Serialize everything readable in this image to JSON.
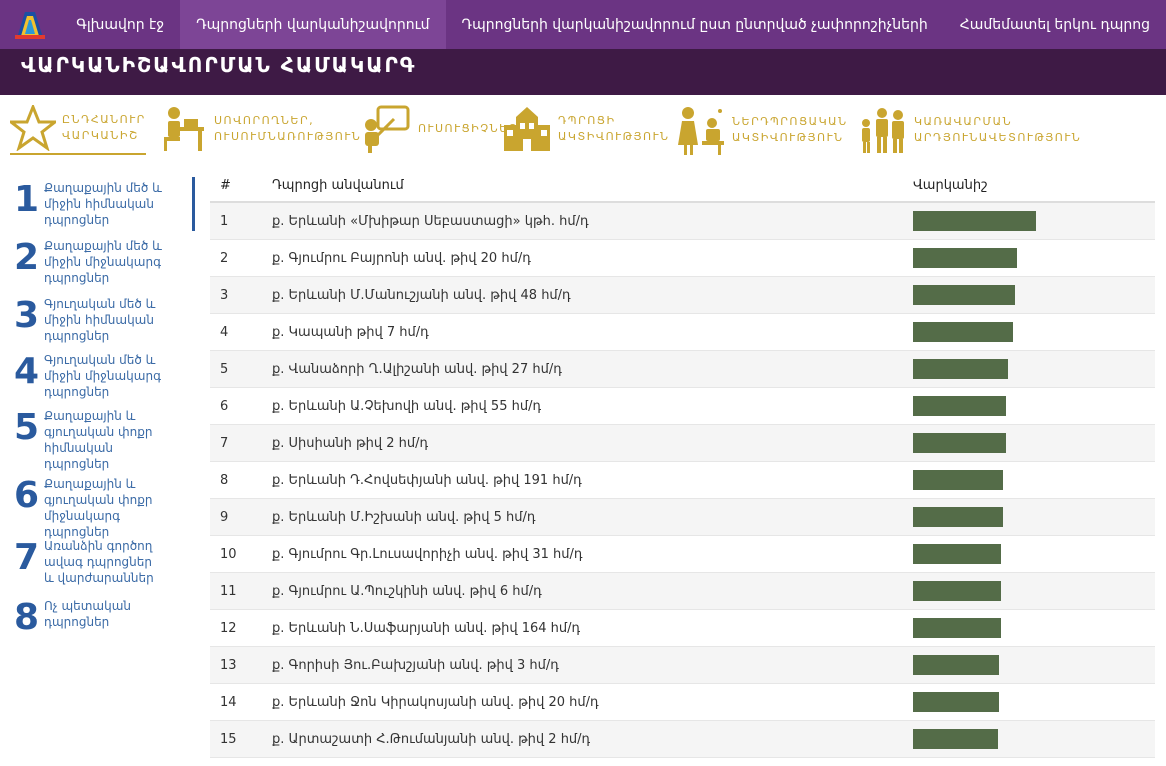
{
  "nav": {
    "items": [
      {
        "label": "Գլխավոր էջ"
      },
      {
        "label": "Դպրոցների վարկանիշավորում"
      },
      {
        "label": "Դպրոցների վարկանիշավորում ըստ ընտրված չափորոշիչների"
      },
      {
        "label": "Համեմատել երկու դպրոց"
      }
    ],
    "active_index": 1
  },
  "banner": {
    "title": "ՎԱՐԿԱՆԻՇԱՎՈՐՄԱՆ ՀԱՄԱԿԱՐԳ"
  },
  "categories": [
    {
      "line1": "ԸՆԴՀԱՆՈՒՐ",
      "line2": "ՎԱՐԿԱՆԻՇ",
      "icon": "star-icon"
    },
    {
      "line1": "ՍՈՎՈՐՈՂՆԵՐ,",
      "line2": "ՈՒՍՈՒՄՆԱՌՈՒԹՅՈՒՆ",
      "icon": "student-desk-icon"
    },
    {
      "line1": "ՈՒՍՈՒՑԻՉՆԵՐ",
      "line2": "",
      "icon": "teacher-board-icon"
    },
    {
      "line1": "ԴՊՐՈՑԻ",
      "line2": "ԱԿՏԻՎՈՒԹՅՈՒՆ",
      "icon": "school-building-icon"
    },
    {
      "line1": "ՆԵՐԴՊՐՈՑԱԿԱՆ",
      "line2": "ԱԿՏԻՎՈՒԹՅՈՒՆ",
      "icon": "classroom-activity-icon"
    },
    {
      "line1": "ԿԱՌԱՎԱՐՄԱՆ",
      "line2": "ԱՐԴՅՈՒՆԱՎԵՏՈՒԹՅՈՒՆ",
      "icon": "family-group-icon"
    }
  ],
  "sidebar": {
    "items": [
      {
        "num": "1",
        "text": "Քաղաքային մեծ և միջին հիմնական դպրոցներ"
      },
      {
        "num": "2",
        "text": "Քաղաքային մեծ և միջին միջնակարգ դպրոցներ"
      },
      {
        "num": "3",
        "text": "Գյուղական մեծ և միջին հիմնական դպրոցներ"
      },
      {
        "num": "4",
        "text": "Գյուղական մեծ և միջին միջնակարգ դպրոցներ"
      },
      {
        "num": "5",
        "text": "Քաղաքային և գյուղական փոքր հիմնական դպրոցներ"
      },
      {
        "num": "6",
        "text": "Քաղաքային և գյուղական փոքր միջնակարգ դպրոցներ"
      },
      {
        "num": "7",
        "text": "Առանձին գործող ավագ դպրոցներ և վարժարաններ"
      },
      {
        "num": "8",
        "text": "Ոչ պետական դպրոցներ"
      }
    ]
  },
  "table": {
    "headers": {
      "num": "#",
      "name": "Դպրոցի անվանում",
      "rank": "Վարկանիշ"
    },
    "bar_color": "#546c48",
    "rows": [
      {
        "num": "1",
        "name": "ք. Երևանի «Մխիթար Սեբաստացի» կթհ. հմ/դ",
        "score": 0.93
      },
      {
        "num": "2",
        "name": "ք. Գյումրու Բայրոնի անվ. թիվ 20 հմ/դ",
        "score": 0.79
      },
      {
        "num": "3",
        "name": "ք. Երևանի Մ.Մանուշյանի անվ. թիվ 48 հմ/դ",
        "score": 0.77
      },
      {
        "num": "4",
        "name": "ք. Կապանի թիվ 7 հմ/դ",
        "score": 0.76
      },
      {
        "num": "5",
        "name": "ք. Վանաձորի Ղ.Ալիշանի անվ. թիվ 27 հմ/դ",
        "score": 0.72
      },
      {
        "num": "6",
        "name": "ք. Երևանի Ա.Չեխովի անվ. թիվ 55 հմ/դ",
        "score": 0.705
      },
      {
        "num": "7",
        "name": "ք. Սիսիանի թիվ 2 հմ/դ",
        "score": 0.705
      },
      {
        "num": "8",
        "name": "ք. Երևանի Դ.Հովսեփյանի անվ. թիվ 191 հմ/դ",
        "score": 0.68
      },
      {
        "num": "9",
        "name": "ք. Երևանի Մ.Իշխանի անվ. թիվ 5 հմ/դ",
        "score": 0.68
      },
      {
        "num": "10",
        "name": "ք. Գյումրու Գր.Լուսավորիչի անվ. թիվ 31 հմ/դ",
        "score": 0.665
      },
      {
        "num": "11",
        "name": "ք. Գյումրու Ա.Պուշկինի անվ. թիվ 6 հմ/դ",
        "score": 0.665
      },
      {
        "num": "12",
        "name": "ք. Երևանի Ն.Սաֆարյանի անվ. թիվ 164 հմ/դ",
        "score": 0.665
      },
      {
        "num": "13",
        "name": "ք. Գորիսի Յու.Բախշյանի անվ. թիվ 3 հմ/դ",
        "score": 0.655
      },
      {
        "num": "14",
        "name": "ք. Երևանի Ջոն Կիրակոսյանի անվ. թիվ 20 հմ/դ",
        "score": 0.655
      },
      {
        "num": "15",
        "name": "ք. Արտաշատի Հ.Թումանյանի անվ. թիվ 2 հմ/դ",
        "score": 0.645
      }
    ]
  }
}
